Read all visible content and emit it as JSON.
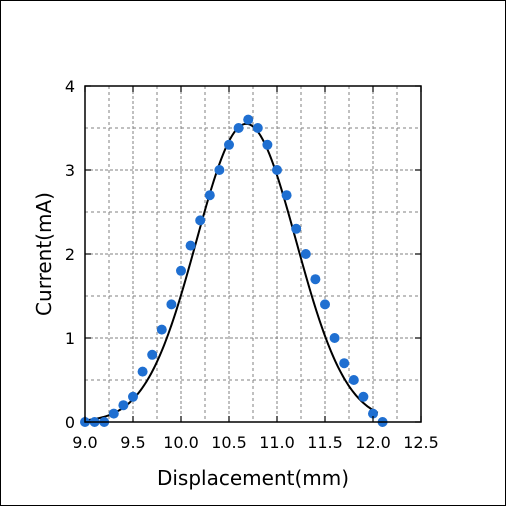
{
  "chart_data": {
    "type": "scatter",
    "title": "",
    "xlabel": "Displacement(mm)",
    "ylabel": "Current(mA)",
    "xlim": [
      9.0,
      12.5
    ],
    "ylim": [
      0,
      4
    ],
    "x_ticks": [
      9.0,
      9.5,
      10.0,
      10.5,
      11.0,
      11.5,
      12.0,
      12.5
    ],
    "x_tick_labels": [
      "9.0",
      "9.5",
      "10.0",
      "10.5",
      "11.0",
      "11.5",
      "12.0",
      "12.5"
    ],
    "y_ticks": [
      0,
      1,
      2,
      3,
      4
    ],
    "y_tick_labels": [
      "0",
      "1",
      "2",
      "3",
      "4"
    ],
    "grid": true,
    "minor_grid": true,
    "legend": "none",
    "colors": {
      "points": "#1f6fd1",
      "fit": "#000000",
      "grid": "#808080"
    },
    "series": [
      {
        "kind": "points",
        "x": [
          9.0,
          9.1,
          9.2,
          9.3,
          9.4,
          9.5,
          9.6,
          9.7,
          9.8,
          9.9,
          10.0,
          10.1,
          10.2,
          10.3,
          10.4,
          10.5,
          10.6,
          10.7,
          10.8,
          10.9,
          11.0,
          11.1,
          11.2,
          11.3,
          11.4,
          11.5,
          11.6,
          11.7,
          11.8,
          11.9,
          12.0,
          12.1
        ],
        "y": [
          0.0,
          0.0,
          0.0,
          0.1,
          0.2,
          0.3,
          0.6,
          0.8,
          1.1,
          1.4,
          1.8,
          2.1,
          2.4,
          2.7,
          3.0,
          3.3,
          3.5,
          3.6,
          3.5,
          3.3,
          3.0,
          2.7,
          2.3,
          2.0,
          1.7,
          1.4,
          1.0,
          0.7,
          0.5,
          0.3,
          0.1,
          0.0
        ]
      },
      {
        "kind": "fit",
        "shape": "gaussian",
        "amplitude": 3.55,
        "center": 10.68,
        "sigma": 0.52,
        "x_range": [
          9.0,
          12.05
        ]
      }
    ]
  }
}
